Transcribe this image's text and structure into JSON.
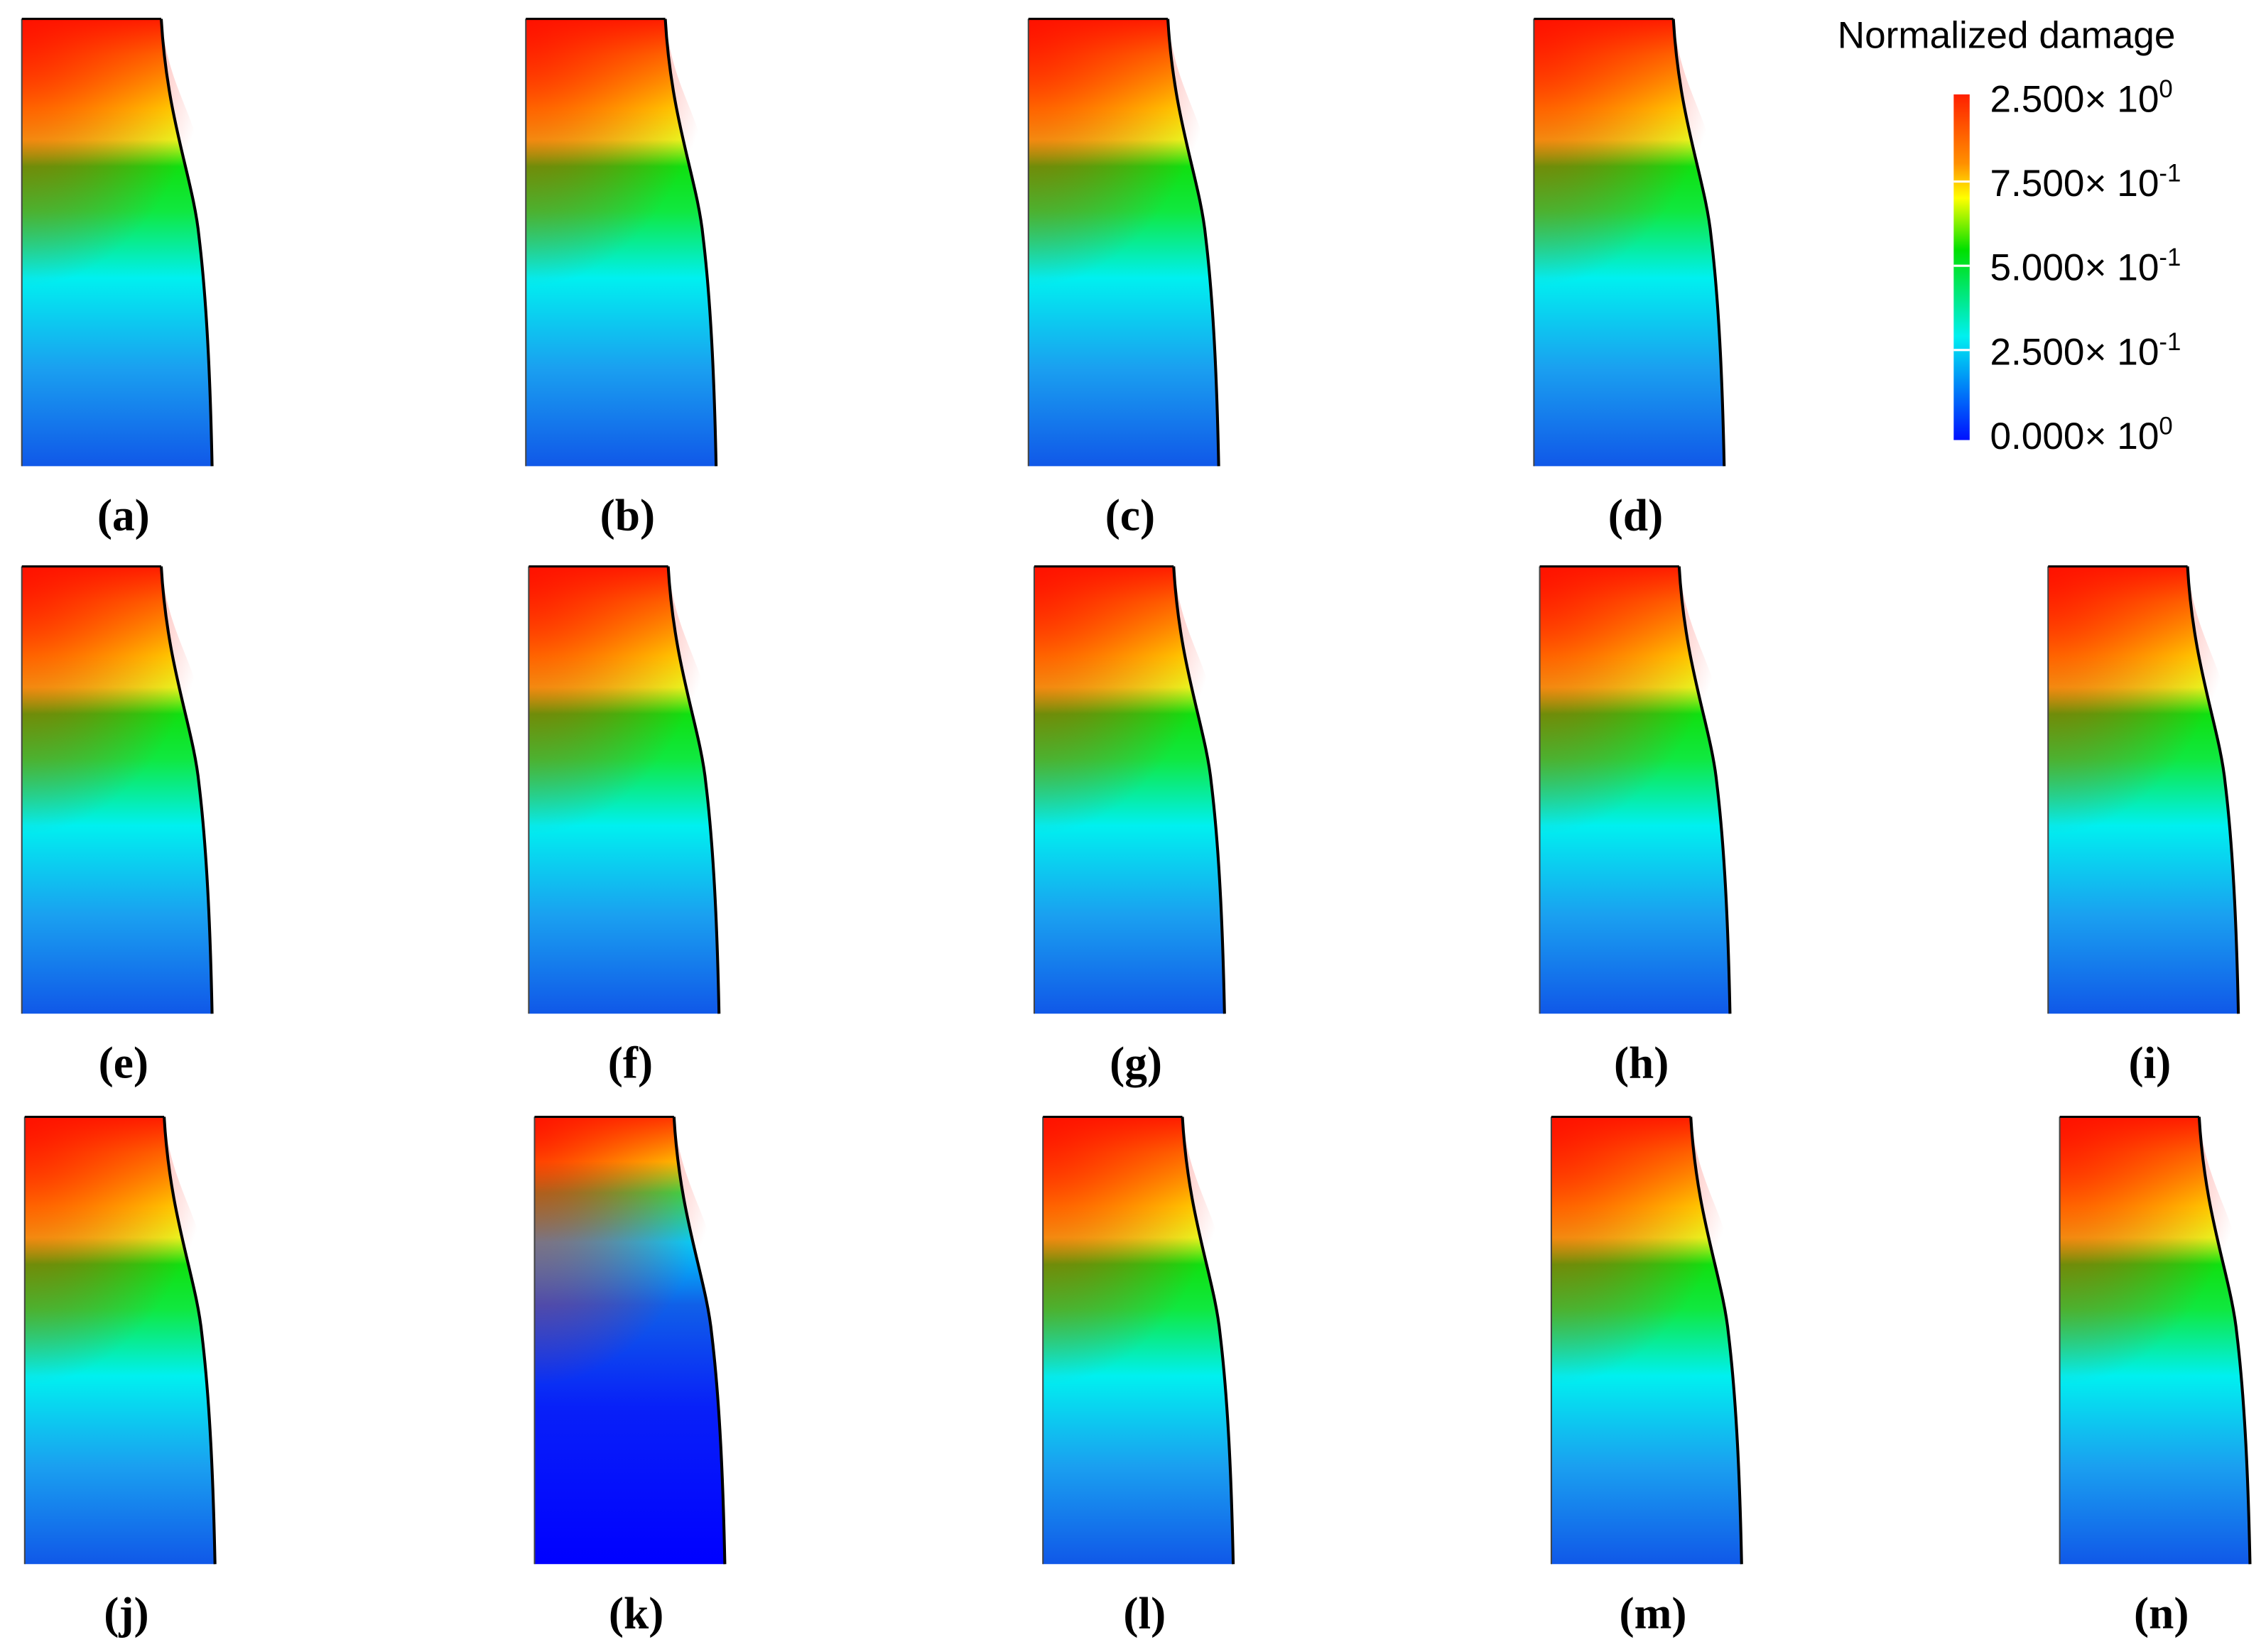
{
  "legend": {
    "title": "Normalized damage",
    "labels": [
      {
        "mantissa": "2.500× 10",
        "exponent": "0"
      },
      {
        "mantissa": "7.500× 10",
        "exponent": "-1"
      },
      {
        "mantissa": "5.000× 10",
        "exponent": "-1"
      },
      {
        "mantissa": "2.500× 10",
        "exponent": "-1"
      },
      {
        "mantissa": "0.000× 10",
        "exponent": "0"
      }
    ]
  },
  "panels": [
    "(a)",
    "(b)",
    "(c)",
    "(d)",
    "(e)",
    "(f)",
    "(g)",
    "(h)",
    "(i)",
    "(j)",
    "(k)",
    "(l)",
    "(m)",
    "(n)"
  ]
}
